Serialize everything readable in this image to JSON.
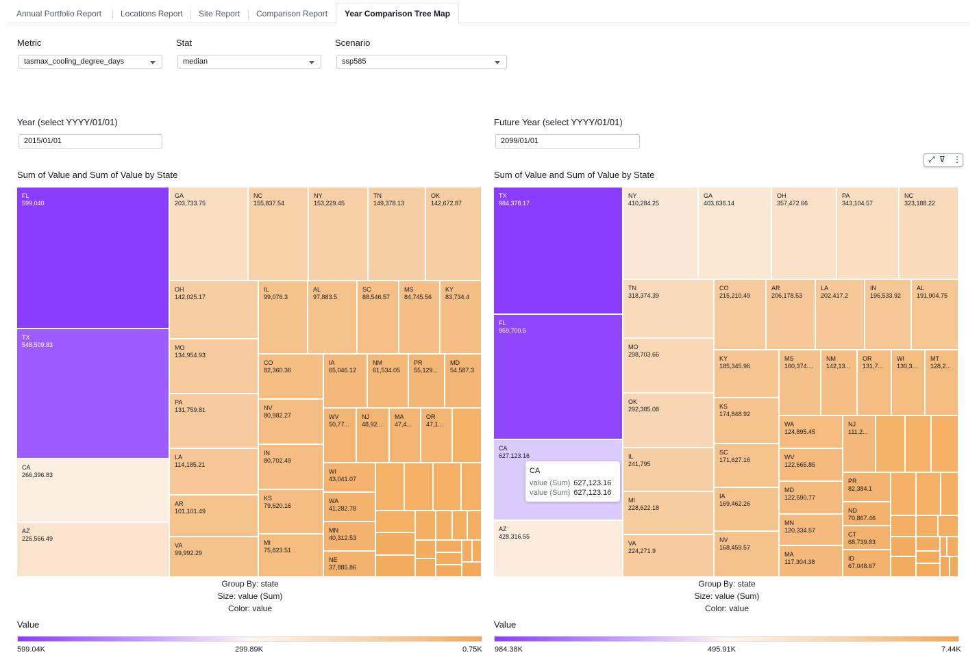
{
  "tabs": [
    {
      "label": "Annual Portfolio Report",
      "active": false
    },
    {
      "label": "Locations Report",
      "active": false
    },
    {
      "label": "Site Report",
      "active": false
    },
    {
      "label": "Comparison Report",
      "active": false
    },
    {
      "label": "Year Comparison Tree Map",
      "active": true
    }
  ],
  "controls": {
    "metric": {
      "label": "Metric",
      "value": "tasmax_cooling_degree_days"
    },
    "stat": {
      "label": "Stat",
      "value": "median"
    },
    "scenario": {
      "label": "Scenario",
      "value": "ssp585"
    },
    "year": {
      "label": "Year (select YYYY/01/01)",
      "value": "2015/01/01"
    },
    "future_year": {
      "label": "Future Year (select YYYY/01/01)",
      "value": "2099/01/01"
    }
  },
  "toolbar": {
    "expand_icon": "expand-icon",
    "filter_icon": "filter-icon",
    "menu_icon": "more-vertical-icon",
    "expand_glyph": "⤢",
    "filter_glyph": "⊽",
    "menu_glyph": "⋮"
  },
  "tooltip": {
    "title": "CA",
    "rows": [
      {
        "key": "value (Sum)",
        "value": "627,123.16"
      },
      {
        "key": "value (Sum)",
        "value": "627,123.16"
      }
    ]
  },
  "chart_data": [
    {
      "type": "heatmap",
      "subtype": "treemap",
      "title": "Sum of Value and Sum of Value by State",
      "group_by": "Group By: state",
      "size": "Size: value (Sum)",
      "color": "Color: value",
      "legend_title": "Value",
      "legend_ticks": [
        "599.04K",
        "299.89K",
        "0.75K"
      ],
      "color_range": [
        750,
        599040
      ],
      "colors": {
        "high": "#8a3dff",
        "mid": "#fdf7f2",
        "low": "#f2a85a"
      },
      "cells": [
        {
          "state": "FL",
          "value": 599040,
          "text": "599,040"
        },
        {
          "state": "TX",
          "value": 548509.83,
          "text": "548,509.83"
        },
        {
          "state": "CA",
          "value": 266396.83,
          "text": "266,396.83"
        },
        {
          "state": "AZ",
          "value": 226566.49,
          "text": "226,566.49"
        },
        {
          "state": "GA",
          "value": 203733.75,
          "text": "203,733.75"
        },
        {
          "state": "NC",
          "value": 155837.54,
          "text": "155,837.54"
        },
        {
          "state": "NY",
          "value": 153229.45,
          "text": "153,229.45"
        },
        {
          "state": "TN",
          "value": 149378.13,
          "text": "149,378.13"
        },
        {
          "state": "OK",
          "value": 142672.87,
          "text": "142,672.87"
        },
        {
          "state": "OH",
          "value": 142025.17,
          "text": "142,025.17"
        },
        {
          "state": "MO",
          "value": 134954.93,
          "text": "134,954.93"
        },
        {
          "state": "PA",
          "value": 131759.81,
          "text": "131,759.81"
        },
        {
          "state": "LA",
          "value": 114185.21,
          "text": "114,185.21"
        },
        {
          "state": "AR",
          "value": 101101.49,
          "text": "101,101.49"
        },
        {
          "state": "VA",
          "value": 99992.29,
          "text": "99,992.29"
        },
        {
          "state": "IL",
          "value": 99076.3,
          "text": "99,076.3"
        },
        {
          "state": "AL",
          "value": 97883.5,
          "text": "97,883.5"
        },
        {
          "state": "SC",
          "value": 88546.57,
          "text": "88,546.57"
        },
        {
          "state": "MS",
          "value": 84745.56,
          "text": "84,745.56"
        },
        {
          "state": "KY",
          "value": 83734.4,
          "text": "83,734.4"
        },
        {
          "state": "CO",
          "value": 82360.36,
          "text": "82,360.36"
        },
        {
          "state": "NV",
          "value": 80982.27,
          "text": "80,982.27"
        },
        {
          "state": "IN",
          "value": 80702.49,
          "text": "80,702.49"
        },
        {
          "state": "KS",
          "value": 79620.16,
          "text": "79,620.16"
        },
        {
          "state": "MI",
          "value": 75823.51,
          "text": "75,823.51"
        },
        {
          "state": "IA",
          "value": 65046.12,
          "text": "65,046.12"
        },
        {
          "state": "NM",
          "value": 61534.05,
          "text": "61,534.05"
        },
        {
          "state": "PR",
          "value": 55129,
          "text": "55,129..."
        },
        {
          "state": "MD",
          "value": 54587.3,
          "text": "54,587.3"
        },
        {
          "state": "WV",
          "value": 50770,
          "text": "50,77..."
        },
        {
          "state": "NJ",
          "value": 48920,
          "text": "48,92..."
        },
        {
          "state": "MA",
          "value": 47400,
          "text": "47,4..."
        },
        {
          "state": "OR",
          "value": 47100,
          "text": "47,1..."
        },
        {
          "state": "WI",
          "value": 43041.07,
          "text": "43,041.07"
        },
        {
          "state": "WA",
          "value": 41282.78,
          "text": "41,282.78"
        },
        {
          "state": "MN",
          "value": 40312.53,
          "text": "40,312.53"
        },
        {
          "state": "NE",
          "value": 37885.86,
          "text": "37,885.86"
        }
      ]
    },
    {
      "type": "heatmap",
      "subtype": "treemap",
      "title": "Sum of Value and Sum of Value by State",
      "group_by": "Group By: state",
      "size": "Size: value (Sum)",
      "color": "Color: value",
      "legend_title": "Value",
      "legend_ticks": [
        "984.38K",
        "495.91K",
        "7.44K"
      ],
      "color_range": [
        7440,
        984380
      ],
      "colors": {
        "high": "#8a3dff",
        "mid": "#fdf7f2",
        "low": "#f2a85a"
      },
      "cells": [
        {
          "state": "TX",
          "value": 984378.17,
          "text": "984,378.17"
        },
        {
          "state": "FL",
          "value": 959700.5,
          "text": "959,700.5"
        },
        {
          "state": "CA",
          "value": 627123.16,
          "text": "627,123.16"
        },
        {
          "state": "AZ",
          "value": 428316.55,
          "text": "428,316.55"
        },
        {
          "state": "NY",
          "value": 410284.25,
          "text": "410,284.25"
        },
        {
          "state": "GA",
          "value": 403636.14,
          "text": "403,636.14"
        },
        {
          "state": "OH",
          "value": 357472.66,
          "text": "357,472.66"
        },
        {
          "state": "PA",
          "value": 343104.57,
          "text": "343,104.57"
        },
        {
          "state": "NC",
          "value": 323188.22,
          "text": "323,188.22"
        },
        {
          "state": "TN",
          "value": 318374.39,
          "text": "318,374.39"
        },
        {
          "state": "MO",
          "value": 298703.66,
          "text": "298,703.66"
        },
        {
          "state": "OK",
          "value": 292385.08,
          "text": "292,385.08"
        },
        {
          "state": "IL",
          "value": 241795,
          "text": "241,795"
        },
        {
          "state": "MI",
          "value": 228622.18,
          "text": "228,622.18"
        },
        {
          "state": "VA",
          "value": 224271.9,
          "text": "224,271.9"
        },
        {
          "state": "CO",
          "value": 215210.49,
          "text": "215,210.49"
        },
        {
          "state": "AR",
          "value": 206178.53,
          "text": "206,178.53"
        },
        {
          "state": "LA",
          "value": 202417.2,
          "text": "202,417.2"
        },
        {
          "state": "IN",
          "value": 196533.92,
          "text": "196,533.92"
        },
        {
          "state": "AL",
          "value": 191904.75,
          "text": "191,904.75"
        },
        {
          "state": "KY",
          "value": 185345.96,
          "text": "185,345.96"
        },
        {
          "state": "KS",
          "value": 174848.92,
          "text": "174,848.92"
        },
        {
          "state": "SC",
          "value": 171627.16,
          "text": "171,627.16"
        },
        {
          "state": "IA",
          "value": 169462.26,
          "text": "169,462.26"
        },
        {
          "state": "NV",
          "value": 168459.57,
          "text": "168,459.57"
        },
        {
          "state": "MS",
          "value": 160374,
          "text": "160,374...."
        },
        {
          "state": "NM",
          "value": 142130,
          "text": "142,13..."
        },
        {
          "state": "OR",
          "value": 131700,
          "text": "131,7..."
        },
        {
          "state": "WI",
          "value": 130300,
          "text": "130,3..."
        },
        {
          "state": "MT",
          "value": 128200,
          "text": "128,2..."
        },
        {
          "state": "WA",
          "value": 124895.45,
          "text": "124,895.45"
        },
        {
          "state": "WV",
          "value": 122665.85,
          "text": "122,665.85"
        },
        {
          "state": "MD",
          "value": 122590.77,
          "text": "122,590.77"
        },
        {
          "state": "MN",
          "value": 120334.57,
          "text": "120,334.57"
        },
        {
          "state": "MA",
          "value": 117304.38,
          "text": "117,304.38"
        },
        {
          "state": "NJ",
          "value": 111200,
          "text": "111,2..."
        },
        {
          "state": "PR",
          "value": 82384.1,
          "text": "82,384.1"
        },
        {
          "state": "ND",
          "value": 70867.46,
          "text": "70,867.46"
        },
        {
          "state": "CT",
          "value": 68739.83,
          "text": "68,739.83"
        },
        {
          "state": "ID",
          "value": 67048.67,
          "text": "67,048.67"
        }
      ]
    }
  ]
}
